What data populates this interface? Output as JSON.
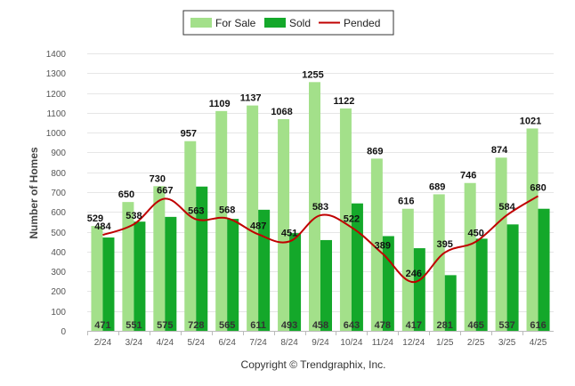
{
  "chart_data": {
    "type": "bar",
    "categories": [
      "2/24",
      "3/24",
      "4/24",
      "5/24",
      "6/24",
      "7/24",
      "8/24",
      "9/24",
      "10/24",
      "11/24",
      "12/24",
      "1/25",
      "2/25",
      "3/25",
      "4/25"
    ],
    "series": [
      {
        "name": "For Sale",
        "type": "bar",
        "color": "#a3e08a",
        "values": [
          529,
          650,
          730,
          957,
          1109,
          1137,
          1068,
          1255,
          1122,
          869,
          616,
          689,
          746,
          874,
          1021
        ]
      },
      {
        "name": "Sold",
        "type": "bar",
        "color": "#14a82a",
        "values": [
          471,
          551,
          575,
          728,
          565,
          611,
          493,
          458,
          643,
          478,
          417,
          281,
          465,
          537,
          616
        ]
      },
      {
        "name": "Pended",
        "type": "line",
        "color": "#c00000",
        "values": [
          484,
          538,
          667,
          563,
          568,
          487,
          451,
          583,
          522,
          389,
          246,
          395,
          450,
          584,
          680
        ]
      }
    ],
    "ylabel": "Number of Homes",
    "ylim": [
      0,
      1400
    ],
    "yticks": [
      0,
      100,
      200,
      300,
      400,
      500,
      600,
      700,
      800,
      900,
      1000,
      1100,
      1200,
      1300,
      1400
    ],
    "grid": true,
    "legend": "top-center"
  },
  "credit": "Copyright © Trendgraphix, Inc."
}
